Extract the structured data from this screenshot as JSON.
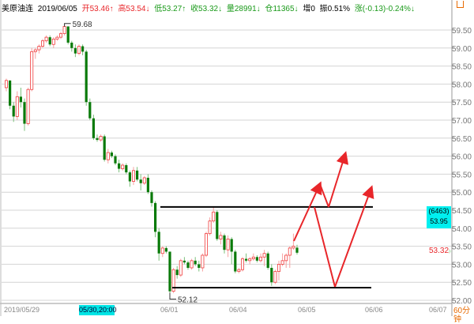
{
  "header": {
    "symbol": "美原油连",
    "date": "2019/06/05",
    "open": "开53.46↑",
    "high": "高53.54↓",
    "low": "低53.27↑",
    "close": "收53.32↓",
    "volume": "量28991↓",
    "position": "仓11365↓",
    "increase": "增0",
    "amplitude": "振0.51%",
    "change": "涨(-0.13)-0.24%↓"
  },
  "right_panel": {
    "price_box_count": "(6463)",
    "price_box_value": "53.95",
    "last_price": "53.32",
    "period": "60分钟"
  },
  "colors": {
    "up": "#f03c3c",
    "down": "#0a7a0a",
    "annotation": "#e8262a",
    "highlight": "#00e5e5"
  },
  "chart_data": {
    "type": "candlestick",
    "title": "",
    "ylim": [
      52.0,
      59.75
    ],
    "y_ticks": [
      "52.00",
      "52.50",
      "53.00",
      "53.50",
      "54.00",
      "54.50",
      "55.00",
      "55.50",
      "56.00",
      "56.50",
      "57.00",
      "57.50",
      "58.00",
      "58.50",
      "59.00",
      "59.50"
    ],
    "x_ticks": [
      "2019/05/29",
      "05/30,20:00",
      "06/01",
      "06/04",
      "06/05",
      "06/06",
      "06/07"
    ],
    "grid": true,
    "max_label": "59.68",
    "min_label": "52.12",
    "drawn_levels": [
      54.59,
      52.35
    ],
    "ohlc": [
      [
        57.9,
        58.15,
        57.8,
        58.1
      ],
      [
        58.1,
        58.1,
        57.3,
        57.4
      ],
      [
        57.4,
        57.5,
        56.95,
        57.1
      ],
      [
        57.1,
        57.8,
        57.0,
        57.65
      ],
      [
        57.65,
        57.9,
        57.35,
        57.5
      ],
      [
        57.5,
        57.6,
        56.7,
        56.9
      ],
      [
        56.9,
        57.9,
        56.85,
        57.85
      ],
      [
        57.85,
        59.0,
        57.8,
        58.9
      ],
      [
        58.9,
        59.0,
        58.7,
        58.95
      ],
      [
        58.95,
        59.1,
        58.85,
        59.05
      ],
      [
        59.05,
        59.25,
        59.0,
        59.2
      ],
      [
        59.2,
        59.35,
        59.15,
        59.3
      ],
      [
        59.3,
        59.35,
        59.05,
        59.1
      ],
      [
        59.1,
        59.3,
        59.0,
        59.25
      ],
      [
        59.25,
        59.35,
        59.2,
        59.3
      ],
      [
        59.3,
        59.45,
        59.25,
        59.4
      ],
      [
        59.4,
        59.68,
        59.35,
        59.6
      ],
      [
        59.6,
        59.6,
        59.1,
        59.15
      ],
      [
        59.15,
        59.2,
        58.9,
        59.0
      ],
      [
        59.0,
        59.1,
        58.75,
        58.85
      ],
      [
        58.85,
        59.1,
        58.8,
        59.05
      ],
      [
        59.05,
        59.1,
        58.8,
        58.9
      ],
      [
        58.9,
        58.95,
        57.4,
        57.5
      ],
      [
        57.5,
        57.6,
        57.0,
        57.05
      ],
      [
        57.05,
        57.15,
        56.45,
        56.5
      ],
      [
        56.5,
        56.6,
        56.4,
        56.45
      ],
      [
        56.45,
        56.6,
        56.4,
        56.55
      ],
      [
        56.55,
        56.6,
        55.85,
        55.9
      ],
      [
        55.9,
        56.2,
        55.8,
        56.1
      ],
      [
        56.1,
        56.15,
        55.95,
        56.0
      ],
      [
        56.0,
        56.05,
        55.75,
        55.8
      ],
      [
        55.8,
        55.9,
        55.55,
        55.65
      ],
      [
        55.65,
        55.8,
        55.6,
        55.75
      ],
      [
        55.75,
        55.8,
        55.5,
        55.55
      ],
      [
        55.55,
        55.6,
        55.15,
        55.3
      ],
      [
        55.3,
        55.7,
        55.2,
        55.6
      ],
      [
        55.6,
        55.7,
        55.3,
        55.35
      ],
      [
        55.35,
        55.5,
        55.05,
        55.25
      ],
      [
        55.25,
        55.45,
        55.2,
        55.4
      ],
      [
        55.4,
        55.5,
        54.95,
        55.0
      ],
      [
        55.0,
        55.05,
        54.6,
        54.7
      ],
      [
        54.7,
        54.75,
        53.75,
        53.9
      ],
      [
        53.9,
        54.0,
        53.1,
        53.3
      ],
      [
        53.3,
        53.5,
        53.2,
        53.45
      ],
      [
        53.45,
        53.5,
        53.3,
        53.35
      ],
      [
        53.35,
        53.35,
        52.12,
        52.25
      ],
      [
        52.25,
        52.9,
        52.2,
        52.85
      ],
      [
        52.85,
        52.95,
        52.6,
        52.7
      ],
      [
        52.7,
        53.15,
        52.65,
        53.1
      ],
      [
        53.1,
        53.2,
        53.0,
        53.05
      ],
      [
        53.05,
        53.1,
        52.85,
        52.9
      ],
      [
        52.9,
        53.15,
        52.85,
        53.1
      ],
      [
        53.1,
        53.2,
        52.95,
        53.0
      ],
      [
        53.0,
        53.1,
        52.8,
        52.9
      ],
      [
        52.9,
        53.3,
        52.8,
        53.25
      ],
      [
        53.25,
        53.9,
        53.2,
        53.85
      ],
      [
        53.85,
        54.3,
        53.8,
        54.2
      ],
      [
        54.2,
        54.58,
        54.15,
        54.45
      ],
      [
        54.45,
        54.5,
        53.65,
        53.7
      ],
      [
        53.7,
        53.9,
        53.55,
        53.8
      ],
      [
        53.8,
        53.85,
        53.3,
        53.4
      ],
      [
        53.4,
        53.8,
        53.2,
        53.7
      ],
      [
        53.7,
        53.75,
        53.0,
        53.35
      ],
      [
        53.35,
        53.4,
        52.75,
        52.8
      ],
      [
        52.8,
        52.9,
        52.75,
        52.85
      ],
      [
        52.85,
        53.2,
        52.8,
        53.15
      ],
      [
        53.15,
        53.3,
        53.05,
        53.1
      ],
      [
        53.1,
        53.2,
        53.0,
        53.15
      ],
      [
        53.15,
        53.3,
        53.1,
        53.2
      ],
      [
        53.2,
        53.25,
        53.05,
        53.1
      ],
      [
        53.1,
        53.3,
        53.05,
        53.2
      ],
      [
        53.2,
        53.4,
        52.95,
        53.3
      ],
      [
        53.3,
        53.35,
        52.85,
        52.9
      ],
      [
        52.9,
        53.0,
        52.4,
        52.5
      ],
      [
        52.5,
        52.85,
        52.45,
        52.8
      ],
      [
        52.8,
        53.1,
        52.55,
        53.0
      ],
      [
        53.0,
        53.3,
        52.95,
        53.1
      ],
      [
        53.1,
        53.3,
        52.9,
        53.25
      ],
      [
        53.25,
        53.5,
        52.9,
        53.45
      ],
      [
        53.45,
        53.85,
        53.4,
        53.5
      ],
      [
        53.46,
        53.54,
        53.27,
        53.32
      ]
    ]
  }
}
